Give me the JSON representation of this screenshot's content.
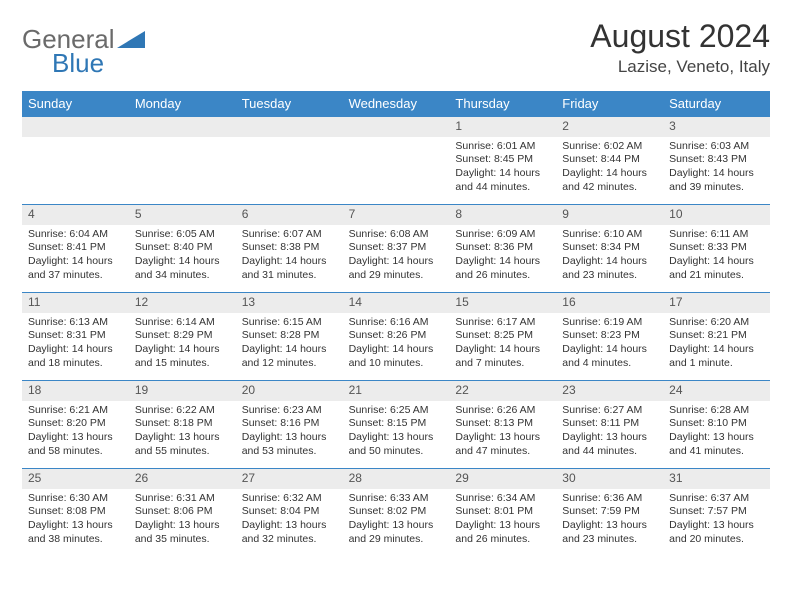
{
  "logo": {
    "word1": "General",
    "word2": "Blue"
  },
  "title": "August 2024",
  "location": "Lazise, Veneto, Italy",
  "colors": {
    "header_bg": "#3b86c6",
    "header_text": "#ffffff",
    "daynum_bg": "#ececec",
    "cell_border": "#3b86c6",
    "body_text": "#333333",
    "logo_gray": "#6a6a6a",
    "logo_blue": "#2f77b5"
  },
  "typography": {
    "title_fontsize": 32,
    "location_fontsize": 17,
    "dayhead_fontsize": 13,
    "daynum_fontsize": 12,
    "cell_fontsize": 10.5
  },
  "dayNames": [
    "Sunday",
    "Monday",
    "Tuesday",
    "Wednesday",
    "Thursday",
    "Friday",
    "Saturday"
  ],
  "weeks": [
    [
      null,
      null,
      null,
      null,
      {
        "d": "1",
        "sr": "6:01 AM",
        "ss": "8:45 PM",
        "dl1": "Daylight: 14 hours",
        "dl2": "and 44 minutes."
      },
      {
        "d": "2",
        "sr": "6:02 AM",
        "ss": "8:44 PM",
        "dl1": "Daylight: 14 hours",
        "dl2": "and 42 minutes."
      },
      {
        "d": "3",
        "sr": "6:03 AM",
        "ss": "8:43 PM",
        "dl1": "Daylight: 14 hours",
        "dl2": "and 39 minutes."
      }
    ],
    [
      {
        "d": "4",
        "sr": "6:04 AM",
        "ss": "8:41 PM",
        "dl1": "Daylight: 14 hours",
        "dl2": "and 37 minutes."
      },
      {
        "d": "5",
        "sr": "6:05 AM",
        "ss": "8:40 PM",
        "dl1": "Daylight: 14 hours",
        "dl2": "and 34 minutes."
      },
      {
        "d": "6",
        "sr": "6:07 AM",
        "ss": "8:38 PM",
        "dl1": "Daylight: 14 hours",
        "dl2": "and 31 minutes."
      },
      {
        "d": "7",
        "sr": "6:08 AM",
        "ss": "8:37 PM",
        "dl1": "Daylight: 14 hours",
        "dl2": "and 29 minutes."
      },
      {
        "d": "8",
        "sr": "6:09 AM",
        "ss": "8:36 PM",
        "dl1": "Daylight: 14 hours",
        "dl2": "and 26 minutes."
      },
      {
        "d": "9",
        "sr": "6:10 AM",
        "ss": "8:34 PM",
        "dl1": "Daylight: 14 hours",
        "dl2": "and 23 minutes."
      },
      {
        "d": "10",
        "sr": "6:11 AM",
        "ss": "8:33 PM",
        "dl1": "Daylight: 14 hours",
        "dl2": "and 21 minutes."
      }
    ],
    [
      {
        "d": "11",
        "sr": "6:13 AM",
        "ss": "8:31 PM",
        "dl1": "Daylight: 14 hours",
        "dl2": "and 18 minutes."
      },
      {
        "d": "12",
        "sr": "6:14 AM",
        "ss": "8:29 PM",
        "dl1": "Daylight: 14 hours",
        "dl2": "and 15 minutes."
      },
      {
        "d": "13",
        "sr": "6:15 AM",
        "ss": "8:28 PM",
        "dl1": "Daylight: 14 hours",
        "dl2": "and 12 minutes."
      },
      {
        "d": "14",
        "sr": "6:16 AM",
        "ss": "8:26 PM",
        "dl1": "Daylight: 14 hours",
        "dl2": "and 10 minutes."
      },
      {
        "d": "15",
        "sr": "6:17 AM",
        "ss": "8:25 PM",
        "dl1": "Daylight: 14 hours",
        "dl2": "and 7 minutes."
      },
      {
        "d": "16",
        "sr": "6:19 AM",
        "ss": "8:23 PM",
        "dl1": "Daylight: 14 hours",
        "dl2": "and 4 minutes."
      },
      {
        "d": "17",
        "sr": "6:20 AM",
        "ss": "8:21 PM",
        "dl1": "Daylight: 14 hours",
        "dl2": "and 1 minute."
      }
    ],
    [
      {
        "d": "18",
        "sr": "6:21 AM",
        "ss": "8:20 PM",
        "dl1": "Daylight: 13 hours",
        "dl2": "and 58 minutes."
      },
      {
        "d": "19",
        "sr": "6:22 AM",
        "ss": "8:18 PM",
        "dl1": "Daylight: 13 hours",
        "dl2": "and 55 minutes."
      },
      {
        "d": "20",
        "sr": "6:23 AM",
        "ss": "8:16 PM",
        "dl1": "Daylight: 13 hours",
        "dl2": "and 53 minutes."
      },
      {
        "d": "21",
        "sr": "6:25 AM",
        "ss": "8:15 PM",
        "dl1": "Daylight: 13 hours",
        "dl2": "and 50 minutes."
      },
      {
        "d": "22",
        "sr": "6:26 AM",
        "ss": "8:13 PM",
        "dl1": "Daylight: 13 hours",
        "dl2": "and 47 minutes."
      },
      {
        "d": "23",
        "sr": "6:27 AM",
        "ss": "8:11 PM",
        "dl1": "Daylight: 13 hours",
        "dl2": "and 44 minutes."
      },
      {
        "d": "24",
        "sr": "6:28 AM",
        "ss": "8:10 PM",
        "dl1": "Daylight: 13 hours",
        "dl2": "and 41 minutes."
      }
    ],
    [
      {
        "d": "25",
        "sr": "6:30 AM",
        "ss": "8:08 PM",
        "dl1": "Daylight: 13 hours",
        "dl2": "and 38 minutes."
      },
      {
        "d": "26",
        "sr": "6:31 AM",
        "ss": "8:06 PM",
        "dl1": "Daylight: 13 hours",
        "dl2": "and 35 minutes."
      },
      {
        "d": "27",
        "sr": "6:32 AM",
        "ss": "8:04 PM",
        "dl1": "Daylight: 13 hours",
        "dl2": "and 32 minutes."
      },
      {
        "d": "28",
        "sr": "6:33 AM",
        "ss": "8:02 PM",
        "dl1": "Daylight: 13 hours",
        "dl2": "and 29 minutes."
      },
      {
        "d": "29",
        "sr": "6:34 AM",
        "ss": "8:01 PM",
        "dl1": "Daylight: 13 hours",
        "dl2": "and 26 minutes."
      },
      {
        "d": "30",
        "sr": "6:36 AM",
        "ss": "7:59 PM",
        "dl1": "Daylight: 13 hours",
        "dl2": "and 23 minutes."
      },
      {
        "d": "31",
        "sr": "6:37 AM",
        "ss": "7:57 PM",
        "dl1": "Daylight: 13 hours",
        "dl2": "and 20 minutes."
      }
    ]
  ],
  "labels": {
    "sunrise": "Sunrise: ",
    "sunset": "Sunset: "
  }
}
